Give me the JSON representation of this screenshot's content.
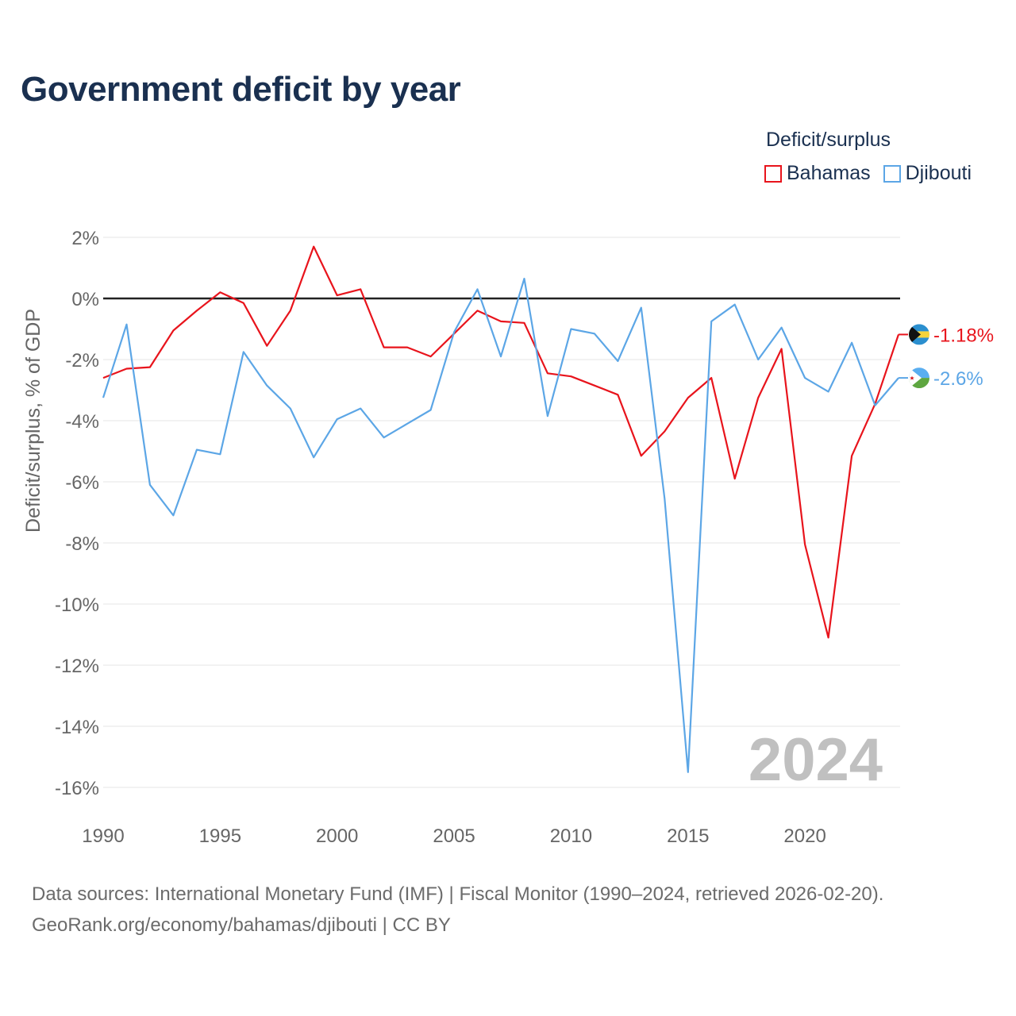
{
  "colors": {
    "bahamas": "#e8141c",
    "djibouti": "#5ca6e6",
    "title": "#1a3050",
    "axis_text": "#666666",
    "watermark": "#c0c0c0"
  },
  "chart_data": {
    "type": "line",
    "title": "Government deficit by year",
    "legend_title": "Deficit/surplus",
    "ylabel": "Deficit/surplus, % of GDP",
    "xlabel": "",
    "xlim": [
      1990,
      2024
    ],
    "ylim": [
      -16,
      2
    ],
    "x_ticks": [
      1990,
      1995,
      2000,
      2005,
      2010,
      2015,
      2020
    ],
    "y_ticks": [
      2,
      0,
      -2,
      -4,
      -6,
      -8,
      -10,
      -12,
      -14,
      -16
    ],
    "year_label": "2024",
    "x": [
      1990,
      1991,
      1992,
      1993,
      1994,
      1995,
      1996,
      1997,
      1998,
      1999,
      2000,
      2001,
      2002,
      2003,
      2004,
      2005,
      2006,
      2007,
      2008,
      2009,
      2010,
      2011,
      2012,
      2013,
      2014,
      2015,
      2016,
      2017,
      2018,
      2019,
      2020,
      2021,
      2022,
      2023,
      2024
    ],
    "series": [
      {
        "name": "Bahamas",
        "key": "bahamas",
        "end_label": "-1.18%",
        "values": [
          -2.6,
          -2.3,
          -2.25,
          -1.05,
          -0.4,
          0.2,
          -0.15,
          -1.55,
          -0.4,
          1.7,
          0.1,
          0.3,
          -1.6,
          -1.6,
          -1.9,
          -1.15,
          -0.4,
          -0.75,
          -0.8,
          -2.45,
          -2.55,
          -2.85,
          -3.15,
          -5.15,
          -4.35,
          -3.25,
          -2.6,
          -5.9,
          -3.25,
          -1.65,
          -8.05,
          -11.1,
          -5.15,
          -3.45,
          -1.18
        ]
      },
      {
        "name": "Djibouti",
        "key": "djibouti",
        "end_label": "-2.6%",
        "values": [
          -3.25,
          -0.85,
          -6.1,
          -7.1,
          -4.95,
          -5.1,
          -1.75,
          -2.85,
          -3.6,
          -5.2,
          -3.95,
          -3.6,
          -4.55,
          -4.1,
          -3.65,
          -1.1,
          0.3,
          -1.9,
          0.65,
          -3.85,
          -1.0,
          -1.15,
          -2.05,
          -0.3,
          -6.55,
          -15.5,
          -0.75,
          -0.2,
          -2.0,
          -0.95,
          -2.6,
          -3.05,
          -1.45,
          -3.5,
          -2.6
        ]
      }
    ]
  },
  "source": {
    "line1": "Data sources: International Monetary Fund (IMF) | Fiscal Monitor (1990–2024, retrieved 2026-02-20).",
    "line2": "GeoRank.org/economy/bahamas/djibouti | CC BY"
  }
}
